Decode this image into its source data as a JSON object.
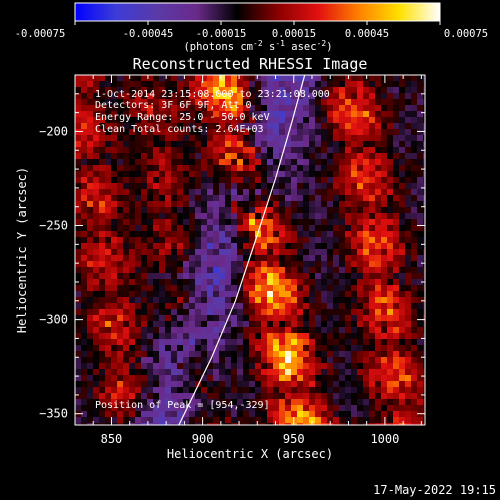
{
  "colorbar": {
    "tick_labels": [
      "-0.00075",
      "-0.00045",
      "-0.00015",
      "0.00015",
      "0.00045",
      "0.00075"
    ],
    "units_label_main": "(photons cm",
    "units_sup1": "-2",
    "units_mid1": " s",
    "units_sup2": "-1",
    "units_mid2": " asec",
    "units_sup3": "-2",
    "units_end": ")",
    "colormap_stops": [
      "#0000ff",
      "#3c3cd8",
      "#5a3aa8",
      "#6a2a8a",
      "#000000",
      "#8a0000",
      "#e21010",
      "#ff8000",
      "#ffe000",
      "#ffffff"
    ]
  },
  "chart_data": {
    "type": "heatmap",
    "title": "Reconstructed RHESSI Image",
    "xlabel": "Heliocentric X (arcsec)",
    "ylabel": "Heliocentric Y (arcsec)",
    "xlim": [
      830,
      1022
    ],
    "ylim": [
      -356,
      -170
    ],
    "x_ticks": [
      850,
      900,
      950,
      1000
    ],
    "y_ticks": [
      -200,
      -250,
      -300,
      -350
    ],
    "x_tick_labels": [
      "850",
      "900",
      "950",
      "1000"
    ],
    "y_tick_labels": [
      "−200",
      "−250",
      "−300",
      "−350"
    ],
    "value_range": [
      -0.00075,
      0.00075
    ],
    "limb_curve": [
      [
        887,
        -356
      ],
      [
        905,
        -320
      ],
      [
        918,
        -290
      ],
      [
        930,
        -255
      ],
      [
        940,
        -225
      ],
      [
        949,
        -195
      ],
      [
        956,
        -170
      ]
    ],
    "source_ridges": [
      {
        "x_at_bottom": 860,
        "x_at_top": 830,
        "peak_value": 0.0004
      },
      {
        "x_at_bottom": 900,
        "x_at_top": 870,
        "peak_value": 0.0003
      },
      {
        "x_at_bottom": 955,
        "x_at_top": 910,
        "peak_value": 0.00075
      },
      {
        "x_at_bottom": 1010,
        "x_at_top": 980,
        "peak_value": 0.0005
      }
    ],
    "annotations": {
      "line1": "1-Oct-2014 23:15:08.000 to 23:21:08.000",
      "line2": "Detectors: 3F 6F 9F, Att 0",
      "line3": "Energy Range: 25.0 - 50.0 keV",
      "line4": "Clean    Total counts: 2.64E+03",
      "peak": "Position of Peak = [954,-329]"
    }
  },
  "footer": {
    "timestamp": "17-May-2022 19:15"
  }
}
